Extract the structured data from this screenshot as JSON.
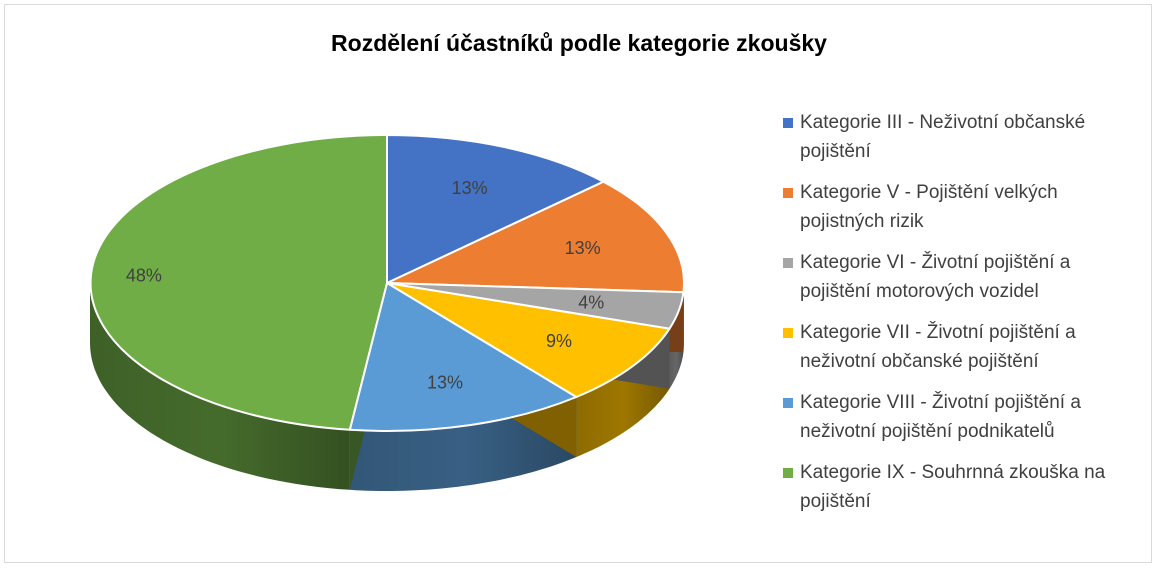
{
  "chart_data": {
    "type": "pie",
    "title": "Rozdělení účastníků podle kategorie zkoušky",
    "labels": [
      "Kategorie III - Neživotní občanské pojištění",
      "Kategorie V - Pojištění velkých pojistných rizik",
      "Kategorie VI - Životní pojištění a pojištění motorových vozidel",
      "Kategorie VII - Životní pojištění a neživotní občanské pojištění",
      "Kategorie VIII - Životní pojištění a neživotní pojištění podnikatelů",
      "Kategorie IX - Souhrnná zkouška na pojištění"
    ],
    "values": [
      13,
      13,
      4,
      9,
      13,
      48
    ],
    "value_labels": [
      "13%",
      "13%",
      "4%",
      "9%",
      "13%",
      "48%"
    ],
    "colors": [
      "#4472C4",
      "#ED7D31",
      "#A5A5A5",
      "#FFC000",
      "#5B9BD5",
      "#70AD47"
    ],
    "legend_position": "right",
    "style": "3d"
  },
  "legend_lines": [
    [
      "Kategorie III - Neživotní občanské",
      "pojištění"
    ],
    [
      "Kategorie V - Pojištění velkých",
      "pojistných rizik"
    ],
    [
      "Kategorie VI - Životní pojištění a",
      "pojištění motorových vozidel"
    ],
    [
      "Kategorie VII - Životní pojištění a",
      "neživotní občanské pojištění"
    ],
    [
      "Kategorie VIII - Životní pojištění a",
      "neživotní pojištění podnikatelů"
    ],
    [
      "Kategorie IX - Souhrnná zkouška na",
      "pojištění"
    ]
  ]
}
